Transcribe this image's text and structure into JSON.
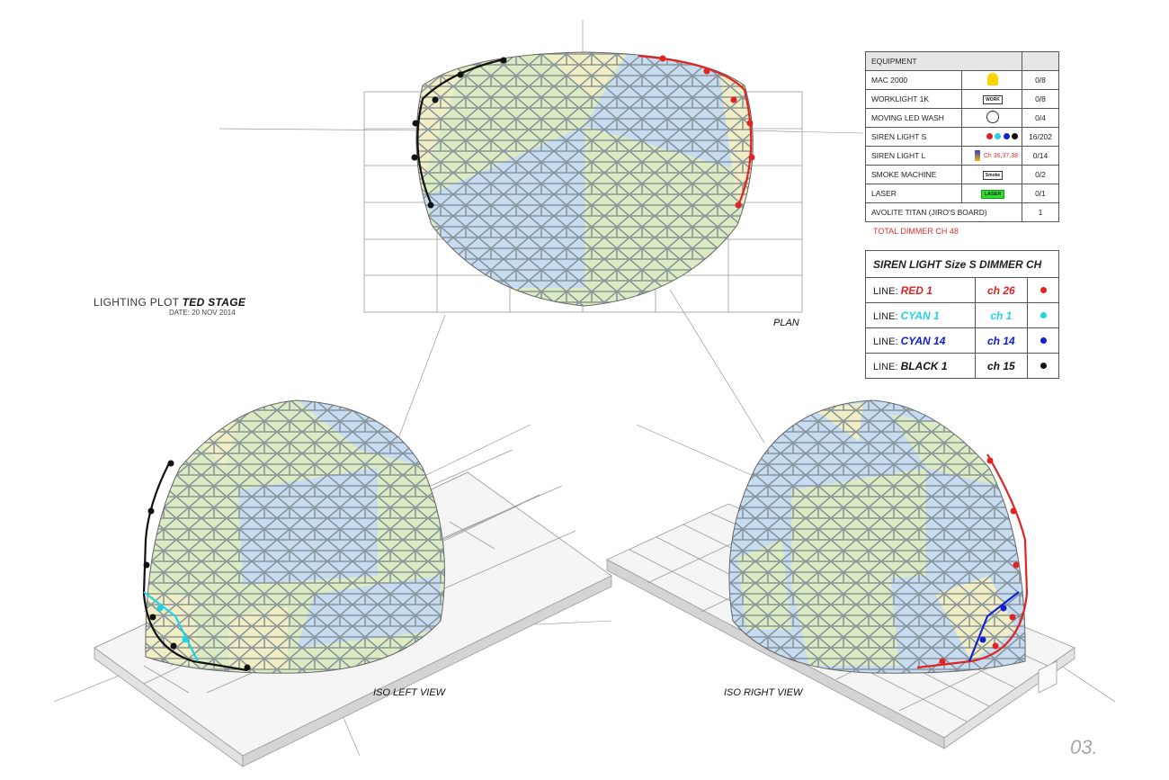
{
  "header": {
    "title_prefix": "LIGHTING PLOT",
    "title_bold": "TED STAGE",
    "date": "DATE: 20 NOV 2014"
  },
  "views": {
    "plan": "PLAN",
    "iso_left": "ISO LEFT VIEW",
    "iso_right": "ISO RIGHT VIEW"
  },
  "page_number": "03.",
  "equipment": {
    "header": "EQUIPMENT",
    "rows": [
      {
        "name": "MAC 2000",
        "icon": "mac-2000-icon",
        "count": "0/8"
      },
      {
        "name": "WORKLIGHT 1K",
        "icon": "worklight-icon",
        "icon_text": "WORK",
        "count": "0/8"
      },
      {
        "name": "MOVING LED WASH",
        "icon": "led-wash-icon",
        "count": "0/4"
      },
      {
        "name": "SIREN LIGHT S",
        "icon": "siren-dots-icon",
        "count": "16/202"
      },
      {
        "name": "SIREN LIGHT L",
        "icon": "siren-l-icon",
        "icon_text": "Ch 36,37,38",
        "count": "0/14"
      },
      {
        "name": "SMOKE MACHINE",
        "icon": "smoke-icon",
        "icon_text": "Smoke",
        "count": "0/2"
      },
      {
        "name": "LASER",
        "icon": "laser-icon",
        "icon_text": "LASER",
        "count": "0/1"
      },
      {
        "name": "AVOLITE TITAN (JIRO'S BOARD)",
        "icon": "",
        "count": "1"
      }
    ],
    "total": "TOTAL DIMMER CH 48"
  },
  "dimmer": {
    "title": "SIREN LIGHT Size S DIMMER CH",
    "line_label": "LINE:",
    "rows": [
      {
        "name": "RED 1",
        "channel": "ch 26",
        "color": "#e02424"
      },
      {
        "name": "CYAN 1",
        "channel": "ch 1",
        "color": "#22d3e6"
      },
      {
        "name": "CYAN 14",
        "channel": "ch 14",
        "color": "#1020d0"
      },
      {
        "name": "BLACK 1",
        "channel": "ch 15",
        "color": "#111111"
      }
    ]
  },
  "colors": {
    "red": "#e02424",
    "cyan": "#22d3e6",
    "blue": "#1020d0",
    "black": "#111111",
    "panel_green": "#dcebc2",
    "panel_blue": "#c7dcf0",
    "panel_yellow": "#f1eec4"
  }
}
